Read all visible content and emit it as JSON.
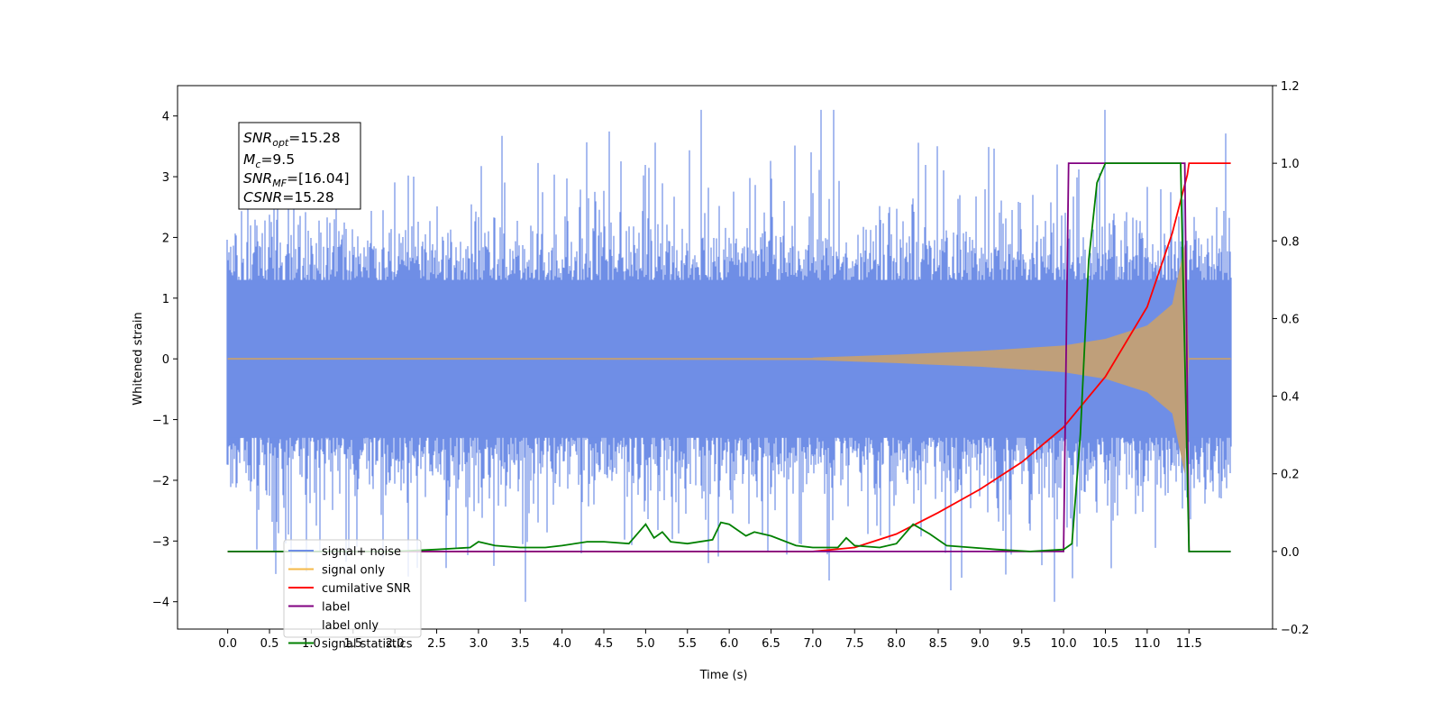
{
  "chart_data": {
    "type": "line",
    "xlabel": "Time (s)",
    "ylabel": "Whitened strain",
    "xlim": [
      -0.6,
      12.5
    ],
    "ylim_left": [
      -4.45,
      4.5
    ],
    "ylim_right": [
      -0.2,
      1.2
    ],
    "x_ticks": [
      0.0,
      0.5,
      1.0,
      1.5,
      2.0,
      2.5,
      3.0,
      3.5,
      4.0,
      4.5,
      5.0,
      5.5,
      6.0,
      6.5,
      7.0,
      7.5,
      8.0,
      8.5,
      9.0,
      9.5,
      10.0,
      10.5,
      11.0,
      11.5
    ],
    "x_tick_labels": [
      "0.0",
      "0.5",
      "1.0",
      "1.5",
      "2.0",
      "2.5",
      "3.0",
      "3.5",
      "4.0",
      "4.5",
      "5.0",
      "5.5",
      "6.0",
      "6.5",
      "7.0",
      "7.5",
      "8.0",
      "8.5",
      "9.0",
      "9.5",
      "10.0",
      "10.5",
      "11.0",
      "11.5"
    ],
    "y_left_ticks": [
      4,
      3,
      2,
      1,
      0,
      -1,
      -2,
      -3,
      -4
    ],
    "y_left_tick_labels": [
      "4",
      "3",
      "2",
      "1",
      "0",
      "−1",
      "−2",
      "−3",
      "−4"
    ],
    "y_right_ticks": [
      1.2,
      1.0,
      0.8,
      0.6,
      0.4,
      0.2,
      0.0,
      -0.2
    ],
    "y_right_tick_labels": [
      "1.2",
      "1.0",
      "0.8",
      "0.6",
      "0.4",
      "0.2",
      "0.0",
      "−0.2"
    ],
    "colors": {
      "noise": "#6f8ee6",
      "signal": "#f5b94a",
      "signal_fill": "#bf9f7a",
      "cumsnr": "#ff0000",
      "label": "#800080",
      "stats": "#008000"
    },
    "series": [
      {
        "name": "signal+ noise",
        "axis": "left",
        "description_values": "noise envelope roughly ±2.5, spikes to ±4.1, x from 0.0 to 12.0"
      },
      {
        "name": "signal only",
        "axis": "left",
        "chirp_envelope": {
          "x": [
            7.0,
            8.0,
            9.0,
            10.0,
            10.5,
            11.0,
            11.3,
            11.45,
            11.5
          ],
          "amplitude": [
            0.02,
            0.07,
            0.13,
            0.22,
            0.33,
            0.55,
            0.9,
            1.9,
            0.0
          ]
        }
      },
      {
        "name": "cumilative SNR",
        "axis": "right",
        "x": [
          0.0,
          7.0,
          7.5,
          8.0,
          8.5,
          9.0,
          9.5,
          10.0,
          10.5,
          11.0,
          11.3,
          11.48,
          11.5,
          12.0
        ],
        "values": [
          0.0,
          0.0,
          0.01,
          0.045,
          0.1,
          0.16,
          0.23,
          0.32,
          0.45,
          0.63,
          0.82,
          0.97,
          1.0,
          1.0
        ]
      },
      {
        "name": "label",
        "axis": "right",
        "x": [
          0.0,
          10.0,
          10.06,
          11.45,
          11.5,
          12.0
        ],
        "values": [
          0.0,
          0.0,
          1.0,
          1.0,
          0.0,
          0.0
        ]
      },
      {
        "name": "label only",
        "axis": "right",
        "x": [],
        "values": []
      },
      {
        "name": "signal statistics",
        "axis": "right",
        "x": [
          0.0,
          2.0,
          2.5,
          2.9,
          3.0,
          3.2,
          3.5,
          3.8,
          4.0,
          4.3,
          4.5,
          4.8,
          5.0,
          5.1,
          5.2,
          5.3,
          5.5,
          5.8,
          5.9,
          6.0,
          6.2,
          6.3,
          6.5,
          6.8,
          7.0,
          7.3,
          7.4,
          7.5,
          7.8,
          8.0,
          8.2,
          8.4,
          8.6,
          8.9,
          9.2,
          9.6,
          10.0,
          10.1,
          10.2,
          10.3,
          10.4,
          10.5,
          10.7,
          11.0,
          11.3,
          11.4,
          11.5,
          11.6,
          12.0
        ],
        "values": [
          0.0,
          0.0,
          0.005,
          0.01,
          0.025,
          0.015,
          0.01,
          0.01,
          0.015,
          0.025,
          0.025,
          0.02,
          0.07,
          0.035,
          0.05,
          0.025,
          0.02,
          0.03,
          0.075,
          0.07,
          0.04,
          0.05,
          0.04,
          0.015,
          0.01,
          0.01,
          0.035,
          0.015,
          0.01,
          0.02,
          0.07,
          0.045,
          0.015,
          0.01,
          0.005,
          0.0,
          0.005,
          0.02,
          0.3,
          0.75,
          0.95,
          1.0,
          1.0,
          1.0,
          1.0,
          1.0,
          0.0,
          0.0,
          0.0
        ]
      }
    ],
    "legend": {
      "placement": "lower-left",
      "entries": [
        "signal+ noise",
        "signal only",
        "cumilative SNR",
        "label",
        "label only",
        "signal statistics"
      ]
    },
    "annotation": {
      "snr_opt": "=15.28",
      "mc": "=9.5",
      "snr_mf": "=[16.04]",
      "csnr": "=15.28"
    }
  }
}
